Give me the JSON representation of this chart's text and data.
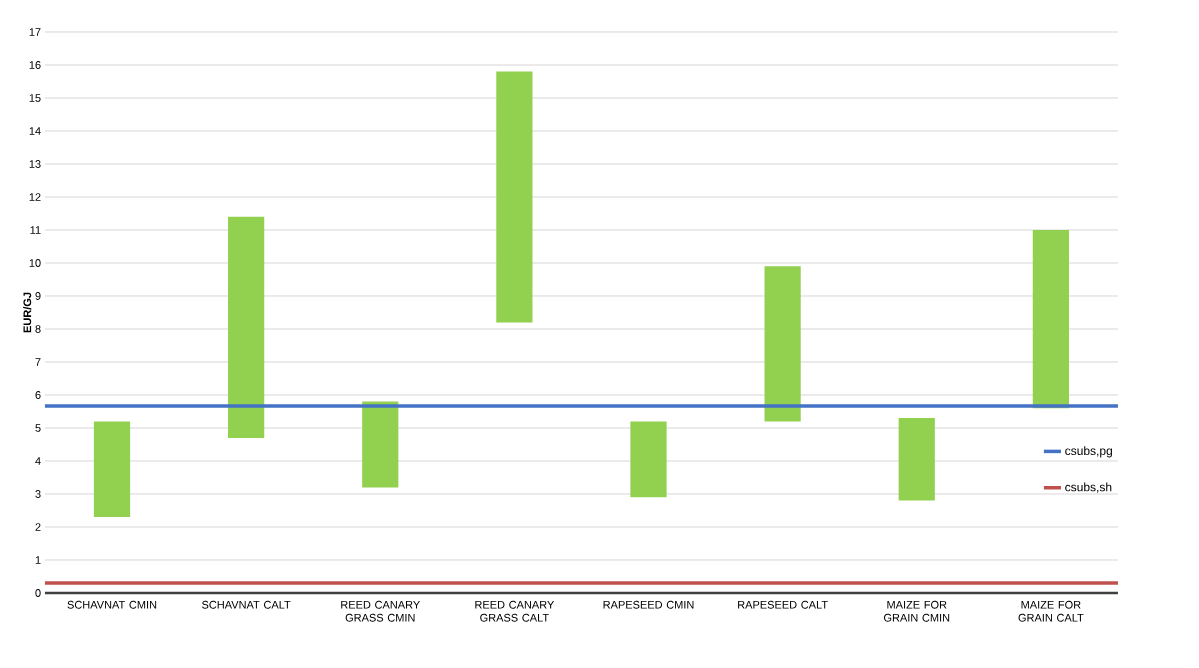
{
  "chart_data": {
    "type": "bar",
    "ylabel": "EUR/GJ",
    "categories": [
      "SCHAVNAT CMIN",
      "SCHAVNAT CALT",
      "REED CANARY GRASS CMIN",
      "REED CANARY GRASS CALT",
      "RAPESEED CMIN",
      "RAPESEED CALT",
      "MAIZE FOR GRAIN CMIN",
      "MAIZE FOR GRAIN CALT"
    ],
    "base": [
      2.3,
      4.7,
      3.2,
      8.2,
      2.9,
      5.2,
      2.8,
      5.6
    ],
    "values": [
      2.9,
      6.7,
      2.6,
      7.6,
      2.3,
      4.7,
      2.5,
      5.4
    ],
    "color": "#92d050",
    "ylim": [
      0,
      17
    ],
    "yticks": [
      0,
      1,
      2,
      3,
      4,
      5,
      6,
      7,
      8,
      9,
      10,
      11,
      12,
      13,
      14,
      15,
      16,
      17
    ],
    "grid": "y",
    "legend": "right",
    "ref_lines": [
      {
        "axis": "y",
        "value": 5.67,
        "label": "csubs,pg",
        "color": "#4472c4"
      },
      {
        "axis": "y",
        "value": 0.3,
        "label": "csubs,sh",
        "color": "#c0504d"
      }
    ]
  }
}
